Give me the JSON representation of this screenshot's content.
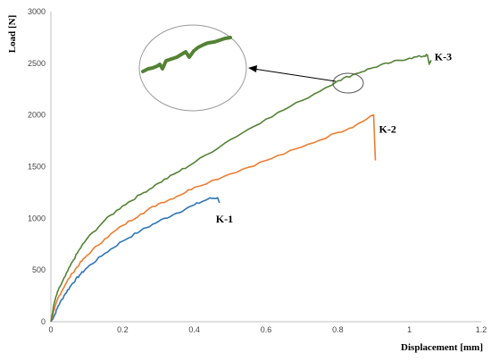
{
  "chart_data": {
    "type": "line",
    "xlabel": "Displacement [mm]",
    "ylabel": "Load [N]",
    "xlim": [
      0,
      1.2
    ],
    "ylim": [
      0,
      3000
    ],
    "x_ticks": [
      0,
      0.2,
      0.4,
      0.6,
      0.8,
      1,
      1.2
    ],
    "y_ticks": [
      0,
      500,
      1000,
      1500,
      2000,
      2500,
      3000
    ],
    "grid": false,
    "legend": "none (series labelled directly)",
    "series": [
      {
        "name": "K-1",
        "color": "#2E75B6",
        "points": [
          [
            0,
            0
          ],
          [
            0.01,
            60
          ],
          [
            0.02,
            150
          ],
          [
            0.04,
            270
          ],
          [
            0.06,
            370
          ],
          [
            0.08,
            450
          ],
          [
            0.1,
            520
          ],
          [
            0.15,
            660
          ],
          [
            0.2,
            780
          ],
          [
            0.25,
            880
          ],
          [
            0.3,
            970
          ],
          [
            0.35,
            1050
          ],
          [
            0.4,
            1130
          ],
          [
            0.44,
            1190
          ],
          [
            0.465,
            1200
          ],
          [
            0.47,
            1150
          ]
        ]
      },
      {
        "name": "K-2",
        "color": "#ED7D31",
        "points": [
          [
            0,
            0
          ],
          [
            0.01,
            120
          ],
          [
            0.02,
            230
          ],
          [
            0.04,
            360
          ],
          [
            0.06,
            470
          ],
          [
            0.08,
            560
          ],
          [
            0.1,
            640
          ],
          [
            0.15,
            800
          ],
          [
            0.2,
            930
          ],
          [
            0.25,
            1040
          ],
          [
            0.3,
            1140
          ],
          [
            0.35,
            1210
          ],
          [
            0.4,
            1300
          ],
          [
            0.5,
            1430
          ],
          [
            0.6,
            1560
          ],
          [
            0.7,
            1690
          ],
          [
            0.8,
            1830
          ],
          [
            0.85,
            1900
          ],
          [
            0.9,
            2000
          ],
          [
            0.905,
            1560
          ]
        ]
      },
      {
        "name": "K-3",
        "color": "#548235",
        "points": [
          [
            0,
            0
          ],
          [
            0.01,
            190
          ],
          [
            0.02,
            300
          ],
          [
            0.04,
            440
          ],
          [
            0.06,
            580
          ],
          [
            0.08,
            700
          ],
          [
            0.1,
            800
          ],
          [
            0.15,
            980
          ],
          [
            0.2,
            1120
          ],
          [
            0.25,
            1230
          ],
          [
            0.3,
            1340
          ],
          [
            0.35,
            1440
          ],
          [
            0.4,
            1540
          ],
          [
            0.5,
            1760
          ],
          [
            0.6,
            1960
          ],
          [
            0.7,
            2140
          ],
          [
            0.8,
            2330
          ],
          [
            0.85,
            2400
          ],
          [
            0.9,
            2460
          ],
          [
            0.95,
            2510
          ],
          [
            1,
            2550
          ],
          [
            1.04,
            2570
          ],
          [
            1.05,
            2580
          ],
          [
            1.055,
            2490
          ],
          [
            1.06,
            2530
          ]
        ]
      }
    ],
    "annotations": [
      {
        "type": "magnified inset",
        "target_series": "K-3"
      }
    ]
  }
}
